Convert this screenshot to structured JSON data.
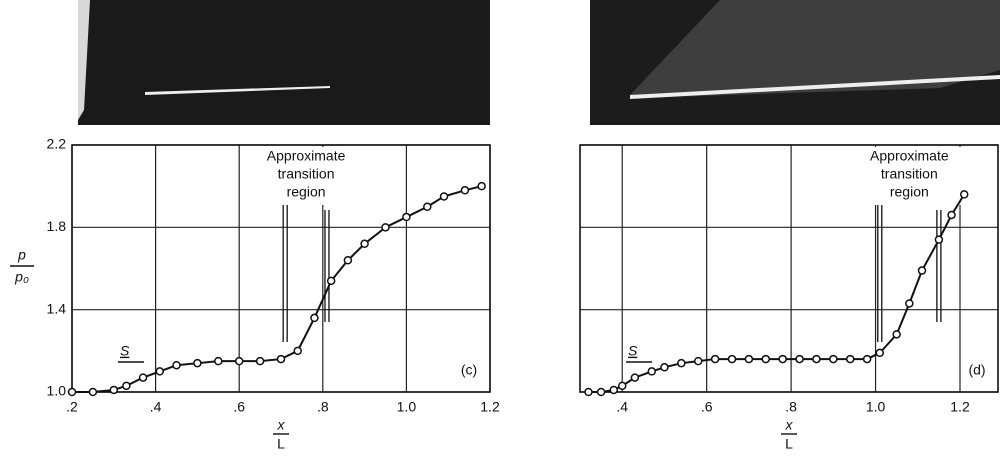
{
  "chart_data": [
    {
      "type": "line",
      "panel_label": "(c)",
      "annotation": [
        "Approximate",
        "transition",
        "region"
      ],
      "marker_label": "S",
      "ylabel_top": "p",
      "ylabel_bottom": "p₀",
      "xlabel_top": "x",
      "xlabel_bottom": "L",
      "x": [
        0.2,
        0.25,
        0.3,
        0.33,
        0.37,
        0.41,
        0.45,
        0.5,
        0.55,
        0.6,
        0.65,
        0.7,
        0.74,
        0.78,
        0.82,
        0.86,
        0.9,
        0.95,
        1.0,
        1.05,
        1.09,
        1.14,
        1.18
      ],
      "values": [
        1.0,
        1.0,
        1.01,
        1.03,
        1.07,
        1.1,
        1.13,
        1.14,
        1.15,
        1.15,
        1.15,
        1.16,
        1.2,
        1.36,
        1.54,
        1.64,
        1.72,
        1.8,
        1.85,
        1.9,
        1.95,
        1.98,
        2.0
      ],
      "transition": [
        0.71,
        0.81
      ],
      "xlim": [
        0.2,
        1.2
      ],
      "ylim": [
        1.0,
        2.2
      ],
      "xticks": [
        {
          "value": 0.2,
          "label": ".2"
        },
        {
          "value": 0.4,
          "label": ".4"
        },
        {
          "value": 0.6,
          "label": ".6"
        },
        {
          "value": 0.8,
          "label": ".8"
        },
        {
          "value": 1.0,
          "label": "1.0"
        },
        1.2
      ],
      "yticks": [
        {
          "value": 1.0,
          "label": "1.0"
        },
        1.4,
        1.8,
        2.2
      ],
      "grid": true,
      "color": "#111111"
    },
    {
      "type": "line",
      "panel_label": "(d)",
      "annotation": [
        "Approximate",
        "transition",
        "region"
      ],
      "marker_label": "S",
      "xlabel_top": "x",
      "xlabel_bottom": "L",
      "x": [
        0.32,
        0.35,
        0.38,
        0.4,
        0.43,
        0.47,
        0.5,
        0.54,
        0.58,
        0.62,
        0.66,
        0.7,
        0.74,
        0.78,
        0.82,
        0.86,
        0.9,
        0.94,
        0.98,
        1.01,
        1.05,
        1.08,
        1.11,
        1.15,
        1.18,
        1.21
      ],
      "values": [
        1.0,
        1.0,
        1.01,
        1.03,
        1.07,
        1.1,
        1.12,
        1.14,
        1.15,
        1.16,
        1.16,
        1.16,
        1.16,
        1.16,
        1.16,
        1.16,
        1.16,
        1.16,
        1.16,
        1.19,
        1.28,
        1.43,
        1.59,
        1.74,
        1.86,
        1.96
      ],
      "transition": [
        1.01,
        1.15
      ],
      "xlim": [
        0.3,
        1.29
      ],
      "ylim": [
        1.0,
        2.2
      ],
      "xticks": [
        {
          "value": 0.4,
          "label": ".4"
        },
        {
          "value": 0.6,
          "label": ".6"
        },
        {
          "value": 0.8,
          "label": ".8"
        },
        {
          "value": 1.0,
          "label": "1.0"
        },
        1.2
      ],
      "yticks": [
        {
          "value": 1.0,
          "label": ""
        },
        {
          "value": 1.4,
          "label": ""
        },
        {
          "value": 1.8,
          "label": ""
        },
        {
          "value": 2.2,
          "label": ""
        }
      ],
      "grid": true,
      "color": "#111111"
    }
  ]
}
